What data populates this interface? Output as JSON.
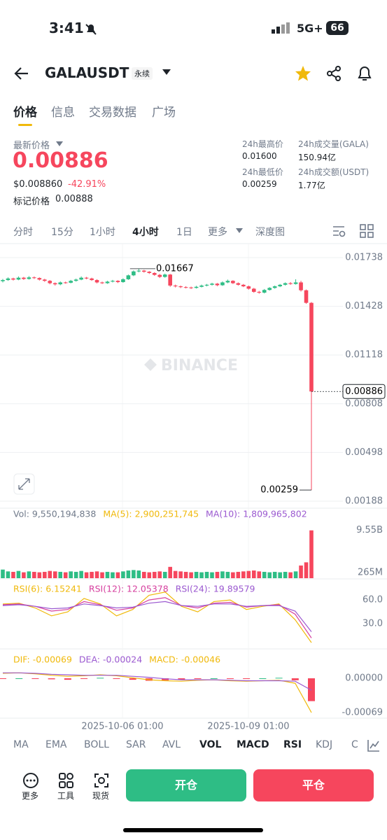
{
  "status_bar": {
    "time": "3:41",
    "network": "5G+",
    "battery": "66"
  },
  "header": {
    "symbol": "GALAUSDT",
    "contract": "永续"
  },
  "tabs": [
    "价格",
    "信息",
    "交易数据",
    "广场"
  ],
  "ticker": {
    "last_price_label": "最新价格",
    "last_price": "0.00886",
    "usd_price": "$0.008860",
    "change": "-42.91%",
    "mark_price_label": "标记价格",
    "mark_price": "0.00888",
    "stats": [
      {
        "label": "24h最高价",
        "value": "0.01600"
      },
      {
        "label": "24h成交量(GALA)",
        "value": "150.94亿"
      },
      {
        "label": "24h最低价",
        "value": "0.00259"
      },
      {
        "label": "24h成交额(USDT)",
        "value": "1.77亿"
      }
    ]
  },
  "intervals": [
    "分时",
    "15分",
    "1小时",
    "4小时",
    "1日",
    "更多",
    "深度图"
  ],
  "price_chart": {
    "type": "candlestick",
    "watermark": "BINANCE",
    "up_color": "#2ebd85",
    "down_color": "#f6465d",
    "ylim": [
      0.00148,
      0.01818
    ],
    "yticks": [
      0.01738,
      0.01428,
      0.01118,
      0.00808,
      0.00498,
      0.00188
    ],
    "high_label": 0.01667,
    "low_label": 0.00259,
    "current_price": 0.00886,
    "candles": [
      [
        0.01588,
        0.01602,
        0.0158,
        0.01595
      ],
      [
        0.01595,
        0.01612,
        0.0159,
        0.01605
      ],
      [
        0.01605,
        0.0161,
        0.01592,
        0.01598
      ],
      [
        0.01598,
        0.01618,
        0.01594,
        0.0161
      ],
      [
        0.0161,
        0.01615,
        0.01596,
        0.01602
      ],
      [
        0.01602,
        0.0162,
        0.01598,
        0.01612
      ],
      [
        0.01612,
        0.01618,
        0.01602,
        0.01608
      ],
      [
        0.01608,
        0.01612,
        0.01592,
        0.01598
      ],
      [
        0.01598,
        0.01603,
        0.01584,
        0.0159
      ],
      [
        0.0159,
        0.01595,
        0.01568,
        0.01575
      ],
      [
        0.01575,
        0.0158,
        0.0156,
        0.01568
      ],
      [
        0.01568,
        0.01586,
        0.01562,
        0.0158
      ],
      [
        0.0158,
        0.01585,
        0.01572,
        0.01578
      ],
      [
        0.01578,
        0.01596,
        0.01574,
        0.0159
      ],
      [
        0.0159,
        0.01604,
        0.01585,
        0.01598
      ],
      [
        0.01598,
        0.01618,
        0.01594,
        0.0161
      ],
      [
        0.0161,
        0.01615,
        0.016,
        0.01605
      ],
      [
        0.01605,
        0.0161,
        0.0159,
        0.01595
      ],
      [
        0.01595,
        0.016,
        0.01574,
        0.0158
      ],
      [
        0.0158,
        0.01585,
        0.0157,
        0.01575
      ],
      [
        0.01575,
        0.0159,
        0.01571,
        0.01585
      ],
      [
        0.01585,
        0.01596,
        0.0158,
        0.0159
      ],
      [
        0.0159,
        0.01594,
        0.01576,
        0.01582
      ],
      [
        0.01582,
        0.01606,
        0.01578,
        0.016
      ],
      [
        0.016,
        0.0163,
        0.01596,
        0.01625
      ],
      [
        0.01625,
        0.01656,
        0.0162,
        0.0165
      ],
      [
        0.0165,
        0.01667,
        0.01644,
        0.01655
      ],
      [
        0.01655,
        0.0166,
        0.01642,
        0.01648
      ],
      [
        0.01648,
        0.01652,
        0.01634,
        0.0164
      ],
      [
        0.0164,
        0.01645,
        0.01622,
        0.01628
      ],
      [
        0.01628,
        0.01634,
        0.01608,
        0.01615
      ],
      [
        0.01615,
        0.01636,
        0.0161,
        0.0163
      ],
      [
        0.0163,
        0.01634,
        0.01552,
        0.0156
      ],
      [
        0.0156,
        0.01566,
        0.01548,
        0.01555
      ],
      [
        0.01555,
        0.0156,
        0.01544,
        0.0155
      ],
      [
        0.0155,
        0.01556,
        0.01542,
        0.01548
      ],
      [
        0.01548,
        0.01553,
        0.01538,
        0.01545
      ],
      [
        0.01545,
        0.01558,
        0.01541,
        0.01552
      ],
      [
        0.01552,
        0.01566,
        0.01548,
        0.0156
      ],
      [
        0.0156,
        0.0157,
        0.01555,
        0.01565
      ],
      [
        0.01565,
        0.01578,
        0.0156,
        0.01572
      ],
      [
        0.01572,
        0.01576,
        0.01556,
        0.01562
      ],
      [
        0.01562,
        0.01586,
        0.01558,
        0.0158
      ],
      [
        0.0158,
        0.01598,
        0.01575,
        0.0159
      ],
      [
        0.0159,
        0.01594,
        0.0157,
        0.01575
      ],
      [
        0.01575,
        0.0158,
        0.0156,
        0.01565
      ],
      [
        0.01565,
        0.0157,
        0.0155,
        0.01555
      ],
      [
        0.01555,
        0.0156,
        0.01534,
        0.0154
      ],
      [
        0.0154,
        0.01545,
        0.01514,
        0.0152
      ],
      [
        0.0152,
        0.01526,
        0.01508,
        0.01515
      ],
      [
        0.01515,
        0.01538,
        0.0151,
        0.01532
      ],
      [
        0.01532,
        0.0155,
        0.01528,
        0.01545
      ],
      [
        0.01545,
        0.0156,
        0.0154,
        0.01555
      ],
      [
        0.01555,
        0.0157,
        0.0155,
        0.01565
      ],
      [
        0.01565,
        0.0158,
        0.0156,
        0.01575
      ],
      [
        0.01575,
        0.01582,
        0.01565,
        0.0157
      ],
      [
        0.0157,
        0.016,
        0.01566,
        0.0158
      ],
      [
        0.0158,
        0.0159,
        0.01522,
        0.0153
      ],
      [
        0.0153,
        0.01535,
        0.01444,
        0.0145
      ],
      [
        0.0145,
        0.01455,
        0.00259,
        0.00886
      ]
    ]
  },
  "volume_chart": {
    "type": "bar",
    "legend": [
      "Vol: 9,550,194,838",
      "MA(5): 2,900,251,745",
      "MA(10): 1,809,965,802"
    ],
    "legend_colors": [
      "#707a8a",
      "#f0b90b",
      "#9b59d0"
    ],
    "ylim": [
      -1000000000,
      11200000000
    ],
    "yticks": [
      {
        "value": 9550000000,
        "label": "9.55B"
      },
      {
        "value": 265000000,
        "label": "265M"
      }
    ],
    "values": [
      900000000,
      500000000,
      400000000,
      600000000,
      300000000,
      500000000,
      400000000,
      300000000,
      400000000,
      600000000,
      500000000,
      400000000,
      300000000,
      500000000,
      400000000,
      600000000,
      300000000,
      400000000,
      500000000,
      300000000,
      400000000,
      300000000,
      300000000,
      500000000,
      700000000,
      800000000,
      700000000,
      400000000,
      300000000,
      400000000,
      500000000,
      400000000,
      1500000000,
      600000000,
      500000000,
      400000000,
      300000000,
      400000000,
      300000000,
      400000000,
      300000000,
      400000000,
      500000000,
      400000000,
      300000000,
      400000000,
      500000000,
      600000000,
      700000000,
      500000000,
      400000000,
      300000000,
      400000000,
      300000000,
      400000000,
      300000000,
      500000000,
      1800000000,
      2500000000,
      9550000000
    ]
  },
  "rsi_chart": {
    "type": "line",
    "ylim": [
      0,
      84
    ],
    "yticks": [
      {
        "value": 60,
        "label": "60.0"
      },
      {
        "value": 30,
        "label": "30.0"
      }
    ],
    "series": [
      {
        "name": "RSI(6): 6.15241",
        "color": "#f0b90b",
        "values": [
          55,
          56,
          50,
          40,
          45,
          62,
          55,
          40,
          48,
          66,
          70,
          52,
          45,
          58,
          60,
          48,
          52,
          55,
          35,
          6.15241
        ]
      },
      {
        "name": "RSI(12): 12.05378",
        "color": "#d6409f",
        "values": [
          54,
          55,
          52,
          46,
          48,
          58,
          54,
          47,
          50,
          60,
          63,
          53,
          50,
          56,
          57,
          51,
          53,
          54,
          42,
          12.05378
        ]
      },
      {
        "name": "RSI(24): 19.89579",
        "color": "#9b59d0",
        "values": [
          53,
          54,
          52,
          49,
          50,
          55,
          53,
          50,
          51,
          56,
          58,
          53,
          52,
          55,
          55,
          52,
          53,
          53,
          46,
          19.89579
        ]
      }
    ]
  },
  "macd_chart": {
    "type": "line",
    "ylim": [
      -0.00079,
      0.00055
    ],
    "yticks": [
      {
        "value": 0,
        "label": "0.00000"
      },
      -0.00069
    ],
    "series": [
      {
        "name": "DIF: -0.00069",
        "color": "#f0b90b",
        "values": [
          0.0001,
          0.00011,
          9e-05,
          6e-05,
          4e-05,
          5e-05,
          7e-05,
          5e-05,
          1e-05,
          -3e-05,
          -5e-05,
          -6e-05,
          -4e-05,
          -3e-05,
          -5e-05,
          -6e-05,
          -5e-05,
          -4e-05,
          -0.0001,
          -0.00069
        ]
      },
      {
        "name": "DEA: -0.00024",
        "color": "#9b59d0",
        "values": [
          0.00011,
          0.00011,
          0.0001,
          8e-05,
          7e-05,
          6e-05,
          6e-05,
          6e-05,
          4e-05,
          2e-05,
          -1e-05,
          -3e-05,
          -3e-05,
          -3e-05,
          -4e-05,
          -5e-05,
          -5e-05,
          -5e-05,
          -6e-05,
          -0.00024
        ]
      }
    ],
    "histogram": {
      "name": "MACD: -0.00046",
      "color": "#f0b90b",
      "values": [
        -1e-05,
        0,
        -1e-05,
        -2e-05,
        -3e-05,
        -1e-05,
        1e-05,
        -1e-05,
        -3e-05,
        -5e-05,
        -4e-05,
        -3e-05,
        -1e-05,
        0,
        -1e-05,
        -1e-05,
        0,
        1e-05,
        -4e-05,
        -0.00046
      ]
    }
  },
  "x_labels": [
    "2025-10-06 01:00",
    "2025-10-09 01:00"
  ],
  "indicators": [
    "MA",
    "EMA",
    "BOLL",
    "SAR",
    "AVL",
    "VOL",
    "MACD",
    "RSI",
    "KDJ",
    "C"
  ],
  "bottom_bar": {
    "tools": [
      "更多",
      "工具",
      "现货"
    ],
    "open": "开仓",
    "close": "平仓"
  }
}
